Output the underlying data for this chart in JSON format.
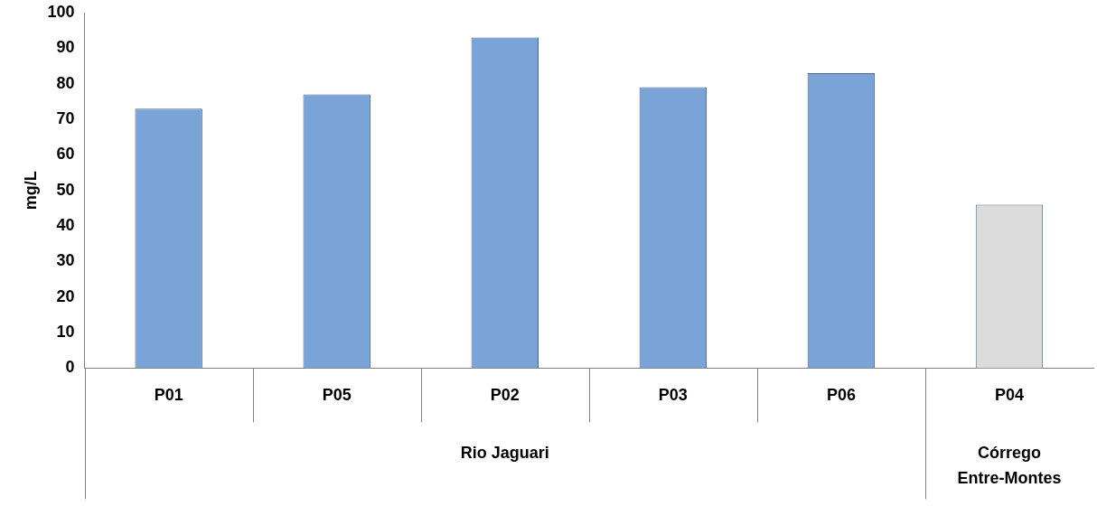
{
  "chart_data": {
    "type": "bar",
    "ylabel": "mg/L",
    "categories": [
      "P01",
      "P05",
      "P02",
      "P03",
      "P06",
      "P04"
    ],
    "values": [
      73,
      77,
      93,
      79,
      83,
      46
    ],
    "colors": [
      "#7aa3d8",
      "#7aa3d8",
      "#7aa3d8",
      "#7aa3d8",
      "#7aa3d8",
      "#dcdcdc"
    ],
    "ylim": [
      0,
      100
    ],
    "yticks": [
      0,
      10,
      20,
      30,
      40,
      50,
      60,
      70,
      80,
      90,
      100
    ],
    "annotations": [
      "Rio Jaguari",
      "Córrego Entre-Montes"
    ]
  }
}
